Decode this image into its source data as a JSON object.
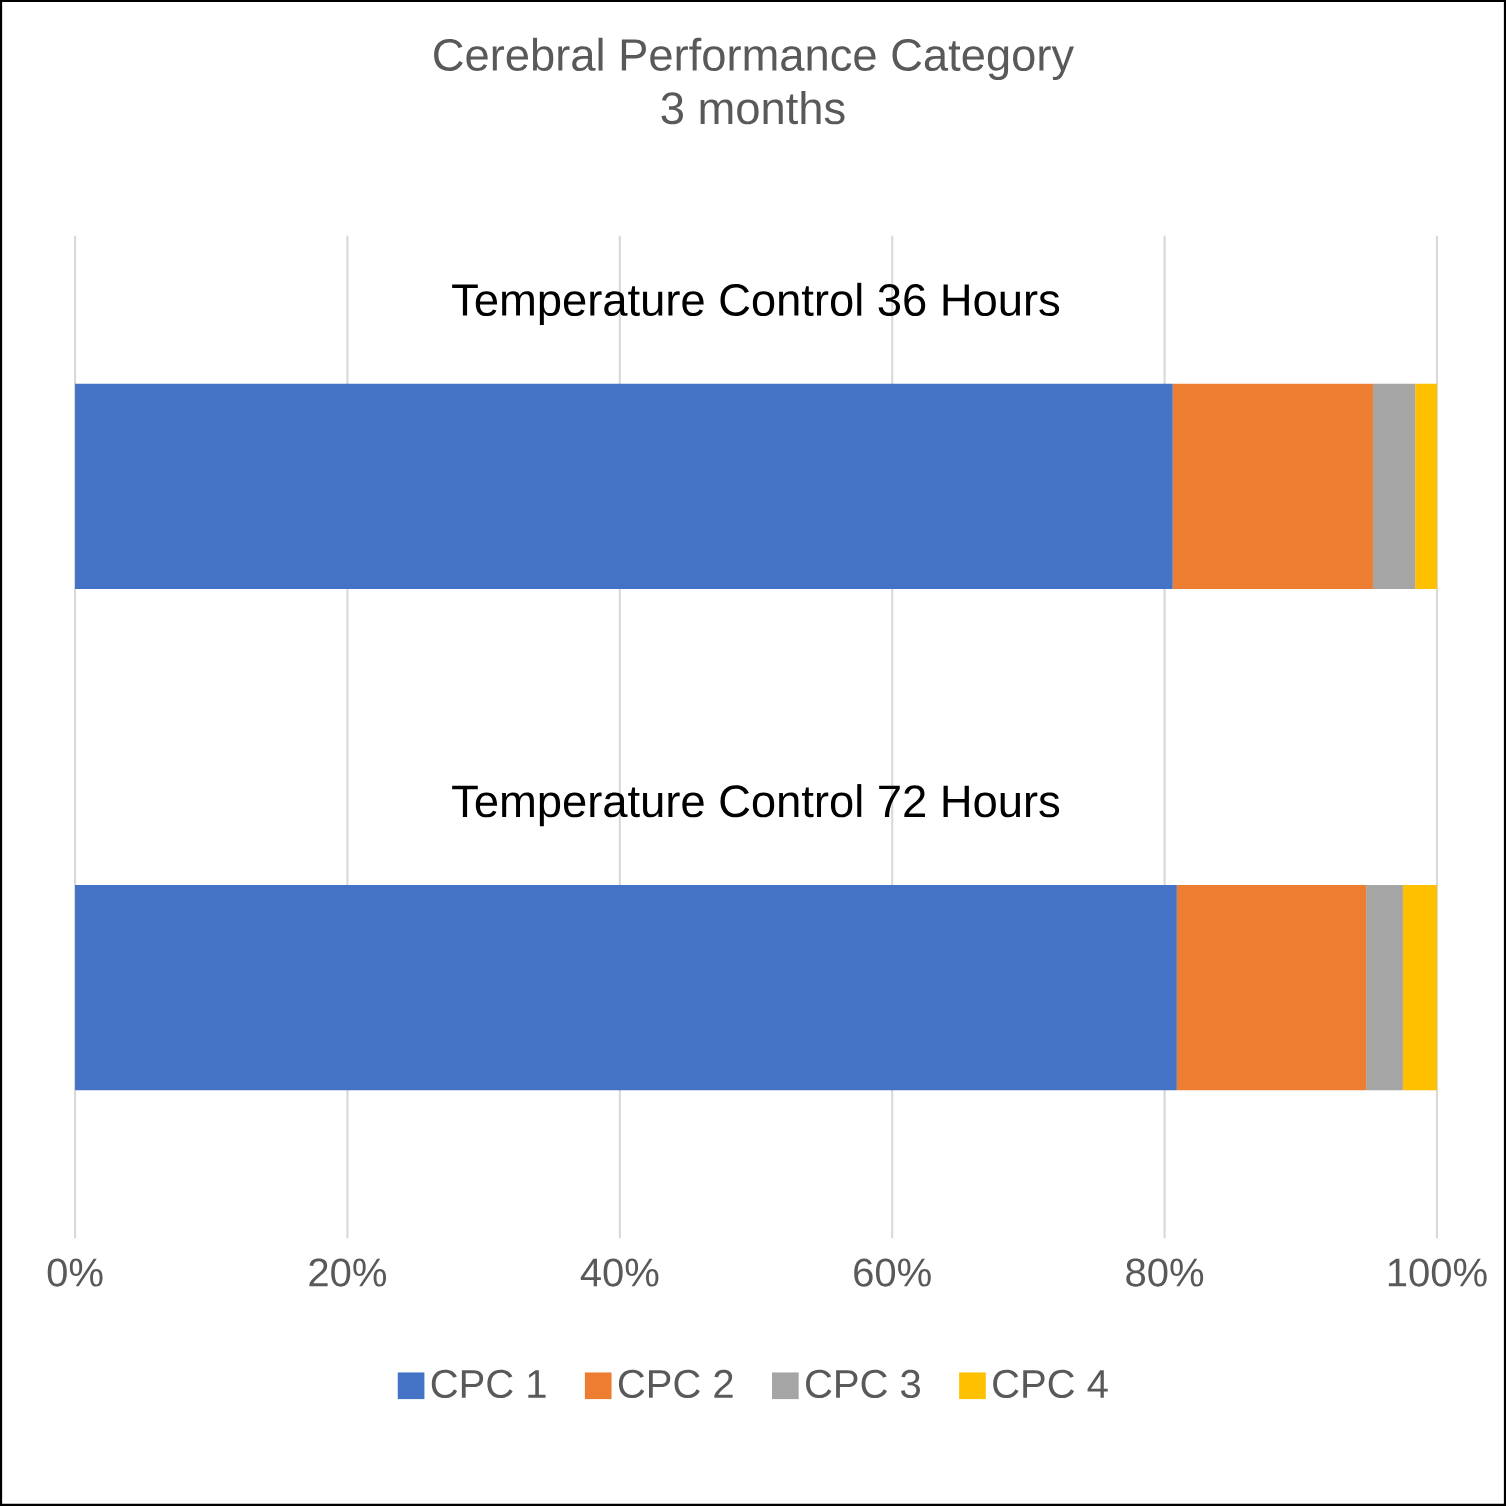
{
  "chart_data": {
    "type": "bar",
    "orientation": "horizontal",
    "stacked": true,
    "title": "Cerebral Performance Category",
    "subtitle": "3 months",
    "categories": [
      "Temperature Control 36 Hours",
      "Temperature Control 72 Hours"
    ],
    "series": [
      {
        "name": "CPC 1",
        "color": "#4472c4",
        "values": [
          80.6,
          80.9
        ]
      },
      {
        "name": "CPC 2",
        "color": "#ed7d31",
        "values": [
          14.7,
          13.9
        ]
      },
      {
        "name": "CPC 3",
        "color": "#a5a5a5",
        "values": [
          3.1,
          2.7
        ]
      },
      {
        "name": "CPC 4",
        "color": "#ffc000",
        "values": [
          1.6,
          2.5
        ]
      }
    ],
    "xlim": [
      0,
      100
    ],
    "xticks": [
      {
        "value": 0,
        "label": "0%"
      },
      {
        "value": 20,
        "label": "20%"
      },
      {
        "value": 40,
        "label": "40%"
      },
      {
        "value": 60,
        "label": "60%"
      },
      {
        "value": 80,
        "label": "80%"
      },
      {
        "value": 100,
        "label": "100%"
      }
    ],
    "grid": "x",
    "legend": "bottom"
  }
}
